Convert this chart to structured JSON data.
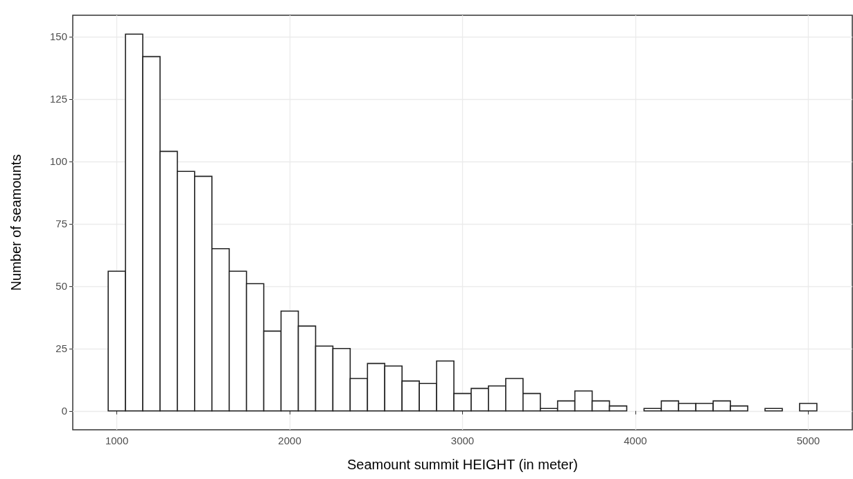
{
  "chart_data": {
    "type": "histogram",
    "xlabel": "Seamount summit HEIGHT (in meter)",
    "ylabel": "Number of seamounts",
    "bins": [
      950,
      1050,
      1150,
      1250,
      1350,
      1450,
      1550,
      1650,
      1750,
      1850,
      1950,
      2050,
      2150,
      2250,
      2350,
      2450,
      2550,
      2650,
      2750,
      2850,
      2950,
      3050,
      3150,
      3250,
      3350,
      3450,
      3550,
      3650,
      3750,
      3850,
      3950,
      4050,
      4150,
      4250,
      4350,
      4450,
      4550,
      4650,
      4750,
      4850,
      4950,
      5050
    ],
    "values": [
      56,
      151,
      142,
      104,
      96,
      94,
      65,
      56,
      51,
      32,
      40,
      34,
      26,
      25,
      13,
      19,
      18,
      12,
      11,
      20,
      7,
      9,
      10,
      13,
      7,
      1,
      4,
      8,
      4,
      2,
      0,
      1,
      4,
      3,
      3,
      4,
      2,
      0,
      1,
      0,
      3
    ],
    "color": "#ffffff",
    "xlim": [
      745,
      5255
    ],
    "xticks": [
      1000,
      2000,
      3000,
      4000,
      5000
    ],
    "ylim": [
      -7.55,
      158.55
    ],
    "yticks": [
      0,
      25,
      50,
      75,
      100,
      125,
      150
    ],
    "grid": true
  }
}
